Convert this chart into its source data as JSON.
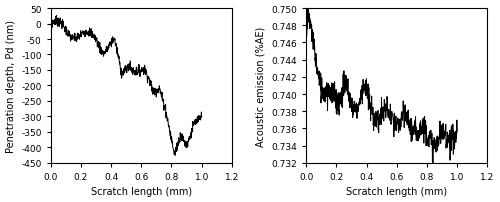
{
  "left": {
    "xlim": [
      0,
      1.2
    ],
    "ylim": [
      -450,
      50
    ],
    "xticks": [
      0,
      0.2,
      0.4,
      0.6,
      0.8,
      1.0,
      1.2
    ],
    "yticks": [
      50,
      0,
      -50,
      -100,
      -150,
      -200,
      -250,
      -300,
      -350,
      -400,
      -450
    ],
    "xlabel": "Scratch length (mm)",
    "ylabel": "Penetration depth, Pd (nm)"
  },
  "right": {
    "xlim": [
      0,
      1.2
    ],
    "ylim": [
      0.732,
      0.75
    ],
    "xticks": [
      0,
      0.2,
      0.4,
      0.6,
      0.8,
      1.0,
      1.2
    ],
    "yticks": [
      0.732,
      0.734,
      0.736,
      0.738,
      0.74,
      0.742,
      0.744,
      0.746,
      0.748,
      0.75
    ],
    "xlabel": "Scratch length (mm)",
    "ylabel": "Acoustic emission (%AE)"
  },
  "line_color": "#000000",
  "line_width": 0.7,
  "bg_color": "#ffffff",
  "seed": 7
}
